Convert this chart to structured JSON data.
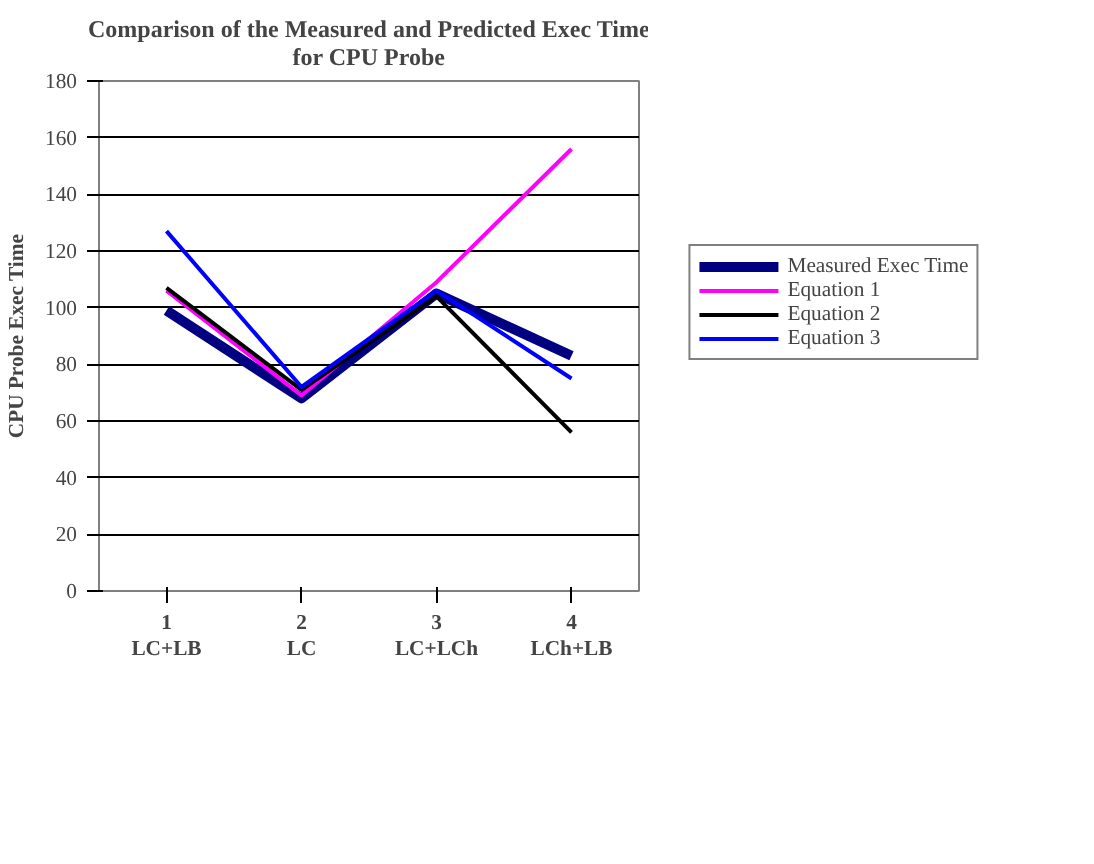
{
  "chart_data": {
    "type": "line",
    "title": "Comparison of the Measured and Predicted Exec Time\nfor CPU Probe",
    "ylabel": "CPU Probe Exec Time",
    "categories": [
      "1\nLC+LB",
      "2\nLC",
      "3\nLC+LCh",
      "4\nLCh+LB"
    ],
    "series": [
      {
        "name": "Measured Exec Time",
        "color": "#000080",
        "values": [
          99,
          68,
          105,
          83
        ]
      },
      {
        "name": "Equation 1",
        "color": "#ff00ff",
        "values": [
          106,
          69,
          109,
          156
        ]
      },
      {
        "name": "Equation 2",
        "color": "#000000",
        "values": [
          107,
          71,
          104,
          56
        ]
      },
      {
        "name": "Equation 3",
        "color": "#0000ff",
        "values": [
          127,
          72,
          106,
          75
        ]
      }
    ],
    "ylim": [
      0,
      180
    ],
    "yticks": [
      0,
      20,
      40,
      60,
      80,
      100,
      120,
      140,
      160,
      180
    ],
    "grid": "y",
    "legend": "right",
    "marker": "none",
    "line_style": "solid"
  }
}
